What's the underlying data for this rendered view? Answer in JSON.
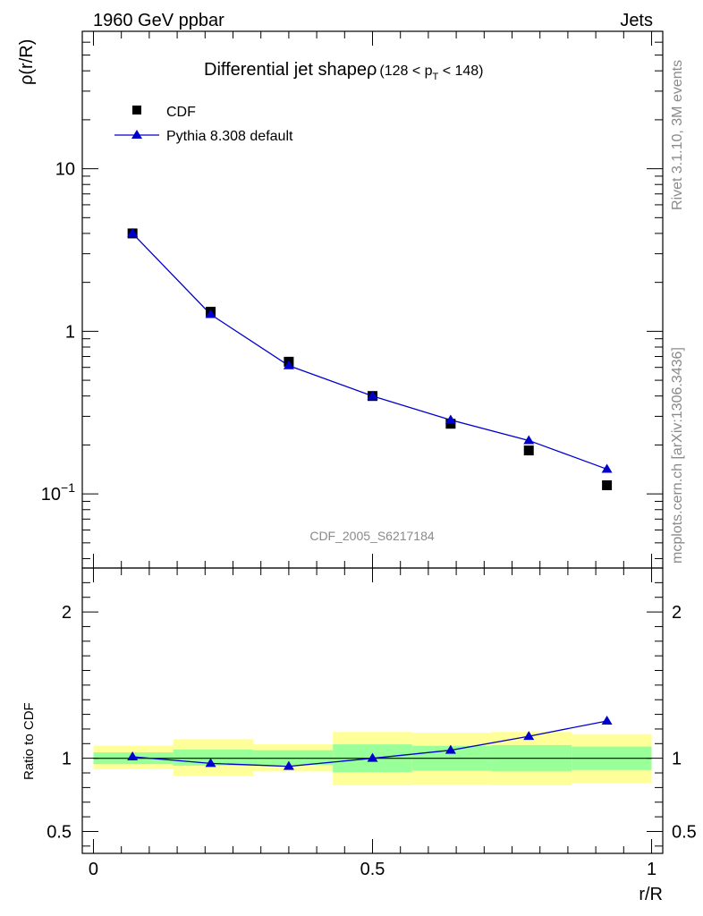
{
  "header": {
    "left_label": "1960 GeV ppbar",
    "right_label": "Jets"
  },
  "side_text": {
    "rivet": "Rivet 3.1.10,  3M events",
    "mcplots": "mcplots.cern.ch [arXiv:1306.3436]"
  },
  "chart_data": [
    {
      "type": "scatter",
      "title": "Differential jet shape",
      "title_symbol": "ρ",
      "title_range": {
        "prefix": "(128 < p",
        "subscript": "T",
        "suffix": " < 148)"
      },
      "ylabel": "ρ(r/R)",
      "xlabel": "",
      "yscale": "log",
      "xlim": [
        -0.02,
        1.02
      ],
      "ylim": [
        0.035,
        70
      ],
      "yticks": [
        {
          "value": 10,
          "label": "10"
        },
        {
          "value": 1,
          "label": "1"
        },
        {
          "value": 0.1,
          "base": "10",
          "exponent": "−1"
        }
      ],
      "watermark": "CDF_2005_S6217184",
      "legend_position": "top-left",
      "series": [
        {
          "name": "CDF",
          "marker": "square",
          "color": "#000000",
          "x": [
            0.07,
            0.21,
            0.35,
            0.5,
            0.64,
            0.78,
            0.92
          ],
          "y": [
            4.0,
            1.32,
            0.65,
            0.4,
            0.27,
            0.185,
            0.113
          ]
        },
        {
          "name": "Pythia 8.308 default",
          "marker": "triangle",
          "line": true,
          "color": "#0000cc",
          "x": [
            0.07,
            0.21,
            0.35,
            0.5,
            0.64,
            0.78,
            0.92
          ],
          "y": [
            4.0,
            1.27,
            0.615,
            0.4,
            0.285,
            0.213,
            0.142
          ]
        }
      ]
    },
    {
      "type": "line",
      "ylabel": "Ratio to CDF",
      "xlabel": "r/R",
      "xlim": [
        -0.02,
        1.02
      ],
      "ylim": [
        0.35,
        2.3
      ],
      "xticks": [
        {
          "value": 0,
          "label": "0"
        },
        {
          "value": 0.5,
          "label": "0.5"
        },
        {
          "value": 1,
          "label": "1"
        }
      ],
      "yticks": [
        {
          "value": 2,
          "label": "2"
        },
        {
          "value": 1,
          "label": "1"
        },
        {
          "value": 0.5,
          "label": "0.5"
        }
      ],
      "bands": {
        "bins": [
          [
            0,
            0.143
          ],
          [
            0.143,
            0.286
          ],
          [
            0.286,
            0.429
          ],
          [
            0.429,
            0.571
          ],
          [
            0.571,
            0.714
          ],
          [
            0.714,
            0.857
          ],
          [
            0.857,
            1.0
          ]
        ],
        "total_color": "#ffff99",
        "stat_color": "#99ff99",
        "total": [
          [
            0.925,
            1.085
          ],
          [
            0.88,
            1.13
          ],
          [
            0.91,
            1.095
          ],
          [
            0.815,
            1.18
          ],
          [
            0.82,
            1.175
          ],
          [
            0.815,
            1.18
          ],
          [
            0.83,
            1.165
          ]
        ],
        "stat": [
          [
            0.96,
            1.04
          ],
          [
            0.95,
            1.06
          ],
          [
            0.955,
            1.055
          ],
          [
            0.905,
            1.095
          ],
          [
            0.915,
            1.085
          ],
          [
            0.91,
            1.09
          ],
          [
            0.92,
            1.08
          ]
        ]
      },
      "reference_line": 1,
      "series": [
        {
          "name": "Pythia 8.308 default",
          "marker": "triangle",
          "color": "#0000cc",
          "x": [
            0.07,
            0.21,
            0.35,
            0.5,
            0.64,
            0.78,
            0.92
          ],
          "y": [
            1.01,
            0.965,
            0.945,
            1.0,
            1.055,
            1.15,
            1.255
          ]
        }
      ]
    }
  ]
}
